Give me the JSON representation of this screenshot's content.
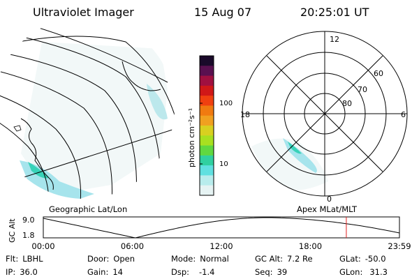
{
  "header": {
    "instrument": "Ultraviolet Imager",
    "date": "15 Aug 07",
    "time": "20:25:01 UT"
  },
  "colorbar": {
    "unit_label": "photon cm⁻²s⁻¹",
    "ticks": [
      "100",
      "10"
    ],
    "colors": [
      "#1a0a2a",
      "#5a1050",
      "#a01040",
      "#d01818",
      "#f04010",
      "#f07a10",
      "#f0a020",
      "#d8d020",
      "#a8e020",
      "#60d840",
      "#30d0a0",
      "#60e0e0",
      "#b8ecec",
      "#e6f3f3"
    ]
  },
  "left_panel": {
    "label": "Geographic Lat/Lon"
  },
  "right_panel": {
    "label": "Apex  MLat/MLT",
    "mlt_labels": {
      "top": "12",
      "left": "18",
      "right": "6",
      "bottom": "0"
    },
    "lat_labels": [
      "60",
      "70",
      "80"
    ]
  },
  "timeline": {
    "ylabel": "GC Alt",
    "y_ticks": [
      "9.0",
      "1.8"
    ],
    "x_ticks": [
      "00:00",
      "06:00",
      "12:00",
      "18:00",
      "23:59"
    ],
    "current_time_marker_hours": 20.42,
    "marker_color": "#e02020"
  },
  "info": {
    "flt_label": "Flt:",
    "flt_value": "LBHL",
    "ip_label": "IP:",
    "ip_value": "36.0",
    "door_label": "Door:",
    "door_value": "Open",
    "gain_label": "Gain:",
    "gain_value": "14",
    "mode_label": "Mode:",
    "mode_value": "Normal",
    "dsp_label": "Dsp:",
    "dsp_value": "-1.4",
    "gcalt_label": "GC Alt:",
    "gcalt_value": "7.2 Re",
    "seq_label": "Seq:",
    "seq_value": "39",
    "glat_label": "GLat:",
    "glat_value": "-50.0",
    "glon_label": "GLon:",
    "glon_value": "31.3"
  }
}
